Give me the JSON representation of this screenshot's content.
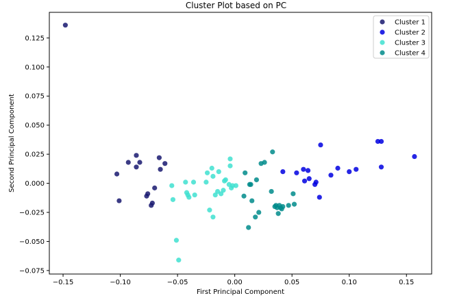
{
  "chart_data": {
    "type": "scatter",
    "title": "Cluster Plot based on PC",
    "xlabel": "First Principal Component",
    "ylabel": "Second Principal Component",
    "xlim": [
      -0.162,
      0.172
    ],
    "ylim": [
      -0.078,
      0.147
    ],
    "xticks": [
      -0.15,
      -0.1,
      -0.05,
      0.0,
      0.05,
      0.1,
      0.15
    ],
    "xtick_labels": [
      "−0.15",
      "−0.10",
      "−0.05",
      "0.00",
      "0.05",
      "0.10",
      "0.15"
    ],
    "yticks": [
      -0.075,
      -0.05,
      -0.025,
      0.0,
      0.025,
      0.05,
      0.075,
      0.1,
      0.125
    ],
    "ytick_labels": [
      "−0.075",
      "−0.050",
      "−0.025",
      "0.000",
      "0.025",
      "0.050",
      "0.075",
      "0.100",
      "0.125"
    ],
    "grid": false,
    "legend_position": "top-right",
    "series": [
      {
        "name": "Cluster 1",
        "color": "#191970",
        "points": [
          [
            -0.148,
            0.136
          ],
          [
            -0.103,
            0.008
          ],
          [
            -0.101,
            -0.015
          ],
          [
            -0.093,
            0.018
          ],
          [
            -0.086,
            0.024
          ],
          [
            -0.086,
            0.014
          ],
          [
            -0.083,
            0.018
          ],
          [
            -0.077,
            -0.011
          ],
          [
            -0.076,
            -0.009
          ],
          [
            -0.073,
            -0.019
          ],
          [
            -0.072,
            -0.017
          ],
          [
            -0.07,
            -0.004
          ],
          [
            -0.066,
            0.022
          ],
          [
            -0.065,
            0.012
          ],
          [
            -0.061,
            0.017
          ]
        ]
      },
      {
        "name": "Cluster 2",
        "color": "#0000e0",
        "points": [
          [
            0.042,
            0.01
          ],
          [
            0.054,
            0.009
          ],
          [
            0.06,
            0.012
          ],
          [
            0.061,
            0.002
          ],
          [
            0.064,
            0.011
          ],
          [
            0.065,
            0.004
          ],
          [
            0.07,
            -0.001
          ],
          [
            0.071,
            0.001
          ],
          [
            0.074,
            -0.012
          ],
          [
            0.075,
            0.033
          ],
          [
            0.084,
            0.007
          ],
          [
            0.09,
            0.013
          ],
          [
            0.1,
            0.01
          ],
          [
            0.106,
            0.012
          ],
          [
            0.125,
            0.036
          ],
          [
            0.128,
            0.036
          ],
          [
            0.128,
            0.014
          ],
          [
            0.157,
            0.023
          ]
        ]
      },
      {
        "name": "Cluster 3",
        "color": "#40e0d0",
        "points": [
          [
            -0.055,
            -0.002
          ],
          [
            -0.054,
            -0.014
          ],
          [
            -0.051,
            -0.049
          ],
          [
            -0.049,
            -0.066
          ],
          [
            -0.043,
            0.001
          ],
          [
            -0.042,
            -0.008
          ],
          [
            -0.041,
            -0.01
          ],
          [
            -0.04,
            -0.012
          ],
          [
            -0.036,
            0.001
          ],
          [
            -0.035,
            -0.01
          ],
          [
            -0.025,
            0.001
          ],
          [
            -0.024,
            0.009
          ],
          [
            -0.022,
            -0.023
          ],
          [
            -0.02,
            0.013
          ],
          [
            -0.019,
            0.006
          ],
          [
            -0.019,
            -0.029
          ],
          [
            -0.017,
            -0.01
          ],
          [
            -0.015,
            -0.007
          ],
          [
            -0.014,
            0.01
          ],
          [
            -0.012,
            -0.009
          ],
          [
            -0.01,
            -0.006
          ],
          [
            -0.009,
            0.002
          ],
          [
            -0.008,
            0.003
          ],
          [
            -0.005,
            -0.001
          ],
          [
            -0.004,
            0.021
          ],
          [
            -0.004,
            0.015
          ],
          [
            -0.003,
            -0.004
          ],
          [
            -0.002,
            -0.002
          ],
          [
            0.001,
            -0.002
          ]
        ]
      },
      {
        "name": "Cluster 4",
        "color": "#008b8b",
        "points": [
          [
            0.008,
            -0.011
          ],
          [
            0.009,
            0.009
          ],
          [
            0.012,
            -0.038
          ],
          [
            0.013,
            -0.001
          ],
          [
            0.014,
            -0.001
          ],
          [
            0.015,
            -0.015
          ],
          [
            0.018,
            -0.029
          ],
          [
            0.019,
            0.003
          ],
          [
            0.021,
            -0.025
          ],
          [
            0.023,
            0.017
          ],
          [
            0.026,
            0.018
          ],
          [
            0.032,
            -0.007
          ],
          [
            0.033,
            0.027
          ],
          [
            0.035,
            -0.02
          ],
          [
            0.036,
            -0.019
          ],
          [
            0.037,
            -0.021
          ],
          [
            0.038,
            -0.026
          ],
          [
            0.039,
            -0.019
          ],
          [
            0.04,
            -0.021
          ],
          [
            0.041,
            -0.022
          ],
          [
            0.042,
            -0.02
          ],
          [
            0.047,
            -0.019
          ],
          [
            0.051,
            -0.009
          ],
          [
            0.052,
            -0.018
          ]
        ]
      }
    ]
  }
}
